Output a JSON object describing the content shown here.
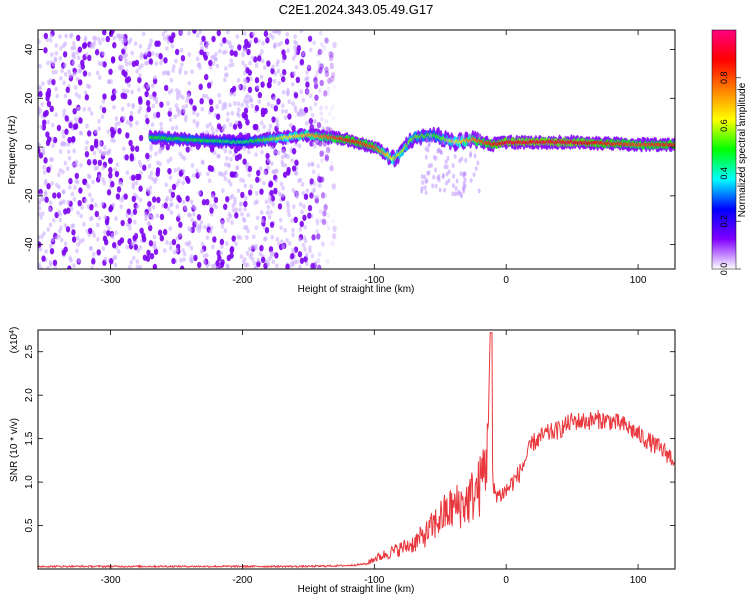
{
  "figure_title": "C2E1.2024.343.05.49.G17",
  "chart_data": [
    {
      "type": "heatmap",
      "xlabel": "Height of straight line (km)",
      "ylabel": "Frequency (Hz)",
      "xlim": [
        -355,
        128
      ],
      "ylim": [
        -50,
        48
      ],
      "xticks": [
        -300,
        -200,
        -100,
        0,
        100
      ],
      "yticks": [
        -40,
        -20,
        0,
        20,
        40
      ],
      "grid": false,
      "colorbar": {
        "label": "Normalized spectral amplitude",
        "range": [
          0,
          1
        ],
        "ticks": [
          "0.0",
          "0.2",
          "0.4",
          "0.6",
          "0.8"
        ],
        "colormap": [
          "#ffffff",
          "#8000ff",
          "#0000ff",
          "#00ffff",
          "#00ff00",
          "#ffff00",
          "#ff8000",
          "#ff0000",
          "#ff0080"
        ]
      },
      "features": [
        {
          "description": "noise speckle",
          "x_range": [
            -355,
            -130
          ],
          "y_range": [
            -50,
            48
          ],
          "amplitude": 0.15
        },
        {
          "description": "signal band",
          "x": [
            -270,
            -240,
            -200,
            -150,
            -120,
            -100,
            -85,
            -70,
            -55,
            -40,
            -25,
            -10,
            0,
            50,
            100,
            128
          ],
          "y": [
            4,
            3,
            2,
            5,
            3,
            0,
            -5,
            4,
            5,
            2,
            3,
            1,
            2,
            2,
            1,
            1
          ],
          "amplitude": [
            0.5,
            0.5,
            0.45,
            0.7,
            0.85,
            0.8,
            0.6,
            0.55,
            0.5,
            0.6,
            0.75,
            0.85,
            0.9,
            0.9,
            0.8,
            0.85
          ]
        }
      ]
    },
    {
      "type": "line",
      "xlabel": "Height of straight line (km)",
      "ylabel": "SNR (10 * v/v)",
      "y_multiplier": "(x10^4)",
      "xlim": [
        -355,
        128
      ],
      "ylim": [
        0,
        2.75
      ],
      "xticks": [
        -300,
        -200,
        -100,
        0,
        100
      ],
      "yticks": [
        0.5,
        1.0,
        1.5,
        2.0,
        2.5
      ],
      "grid": false,
      "series": [
        {
          "color": "#e8383d",
          "x": [
            -355,
            -300,
            -250,
            -200,
            -150,
            -120,
            -105,
            -100,
            -90,
            -80,
            -70,
            -60,
            -50,
            -40,
            -30,
            -20,
            -15,
            -12,
            -10,
            -5,
            0,
            10,
            20,
            30,
            40,
            50,
            60,
            70,
            80,
            90,
            100,
            110,
            120,
            128
          ],
          "y": [
            0.03,
            0.03,
            0.03,
            0.03,
            0.03,
            0.04,
            0.06,
            0.1,
            0.15,
            0.2,
            0.25,
            0.35,
            0.5,
            0.6,
            0.65,
            0.8,
            1.1,
            2.7,
            0.9,
            0.85,
            0.9,
            1.1,
            1.45,
            1.55,
            1.6,
            1.7,
            1.7,
            1.72,
            1.7,
            1.65,
            1.55,
            1.45,
            1.35,
            1.25
          ]
        }
      ]
    }
  ]
}
